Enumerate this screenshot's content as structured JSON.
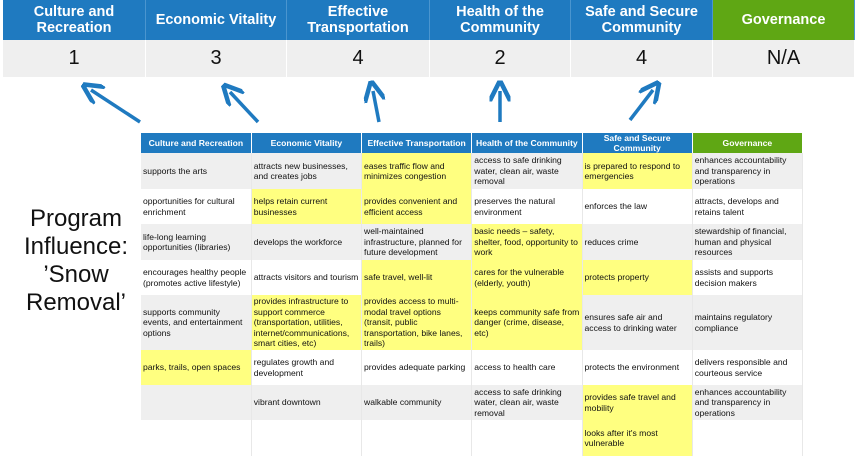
{
  "summary": {
    "headers": [
      "Culture and Recreation",
      "Economic Vitality",
      "Effective Transportation",
      "Health of the Community",
      "Safe and Secure Community",
      "Governance"
    ],
    "scores": [
      "1",
      "3",
      "4",
      "2",
      "4",
      "N/A"
    ]
  },
  "side_label": "Program Influence: ’Snow Removal’",
  "colors": {
    "header_blue": "#1f7ac0",
    "governance_green": "#5fa714",
    "highlight_yellow": "#ffff80",
    "arrow": "#1f7ac0"
  },
  "table": {
    "headers": [
      "Culture and Recreation",
      "Economic Vitality",
      "Effective Transportation",
      "Health of the Community",
      "Safe and Secure Community",
      "Governance"
    ],
    "rows": [
      [
        "supports the arts",
        "attracts new businesses, and creates jobs",
        "eases traffic flow and minimizes congestion",
        "access to safe drinking water, clean air, waste removal",
        "is prepared to respond to emergencies",
        "enhances accountability and transparency in operations"
      ],
      [
        "opportunities for cultural enrichment",
        "helps retain current businesses",
        "provides convenient and efficient access",
        "preserves the natural environment",
        "enforces the law",
        "attracts, develops and retains talent"
      ],
      [
        "life-long learning opportunities (libraries)",
        "develops the workforce",
        "well-maintained infrastructure, planned for future development",
        "basic needs – safety, shelter, food, opportunity to work",
        "reduces crime",
        "stewardship of financial, human and physical resources"
      ],
      [
        "encourages healthy people (promotes active lifestyle)",
        "attracts visitors and tourism",
        "safe travel, well-lit",
        "cares for the vulnerable (elderly, youth)",
        "protects property",
        "assists and supports decision makers"
      ],
      [
        "supports community events, and entertainment options",
        "provides infrastructure to support commerce (transportation, utilities, internet/communications, smart cities, etc)",
        "provides access to multi-modal travel options (transit, public transportation, bike lanes, trails)",
        "keeps community safe from danger (crime, disease, etc)",
        "ensures safe air and access to drinking water",
        "maintains regulatory compliance"
      ],
      [
        "parks, trails, open spaces",
        "regulates growth and development",
        "provides adequate parking",
        "access to health care",
        "protects the environment",
        "delivers responsible and courteous service"
      ],
      [
        "",
        "vibrant downtown",
        "walkable community",
        "access to safe drinking water, clean air, waste removal",
        "provides safe travel and mobility",
        "enhances accountability and transparency in operations"
      ],
      [
        "",
        "",
        "",
        "",
        "looks after it's most vulnerable",
        ""
      ]
    ],
    "highlighted": [
      [
        2,
        4
      ],
      [
        1,
        2
      ],
      [
        3
      ],
      [
        2,
        3,
        4
      ],
      [
        1,
        2,
        3
      ],
      [
        0
      ],
      [
        4
      ],
      [
        4
      ]
    ]
  }
}
